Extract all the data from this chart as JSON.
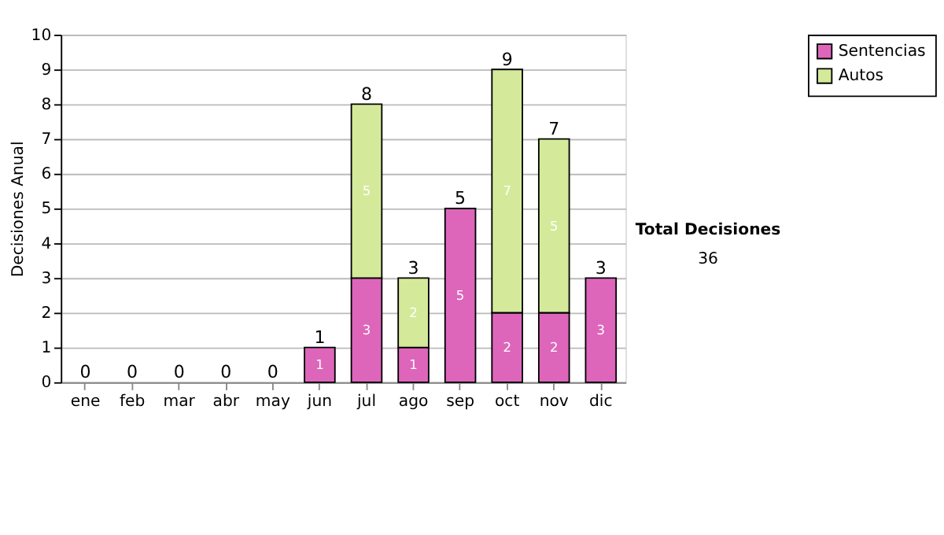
{
  "chart_data": {
    "type": "bar",
    "stacked": true,
    "ylabel": "Decisiones Anual",
    "categories": [
      "ene",
      "feb",
      "mar",
      "abr",
      "may",
      "jun",
      "jul",
      "ago",
      "sep",
      "oct",
      "nov",
      "dic"
    ],
    "series": [
      {
        "name": "Sentencias",
        "color": "#dd66bb",
        "values": [
          0,
          0,
          0,
          0,
          0,
          1,
          3,
          1,
          5,
          2,
          2,
          3
        ],
        "value_labels": [
          null,
          null,
          null,
          null,
          null,
          "1",
          "3",
          "1",
          "5",
          "2",
          "2",
          "3"
        ]
      },
      {
        "name": "Autos",
        "color": "#d4ea9a",
        "values": [
          0,
          0,
          0,
          0,
          0,
          0,
          5,
          2,
          0,
          7,
          5,
          0
        ],
        "value_labels": [
          null,
          null,
          null,
          null,
          null,
          null,
          "5",
          "2",
          null,
          "7",
          "5",
          null
        ]
      }
    ],
    "totals": [
      "0",
      "0",
      "0",
      "0",
      "0",
      "1",
      "8",
      "3",
      "5",
      "9",
      "7",
      "3"
    ],
    "ylim": [
      0,
      10
    ],
    "yticks": [
      0,
      1,
      2,
      3,
      4,
      5,
      6,
      7,
      8,
      9,
      10
    ],
    "grid": "y",
    "legend": "right",
    "annotations": [
      "Total Decisiones",
      "36"
    ]
  }
}
